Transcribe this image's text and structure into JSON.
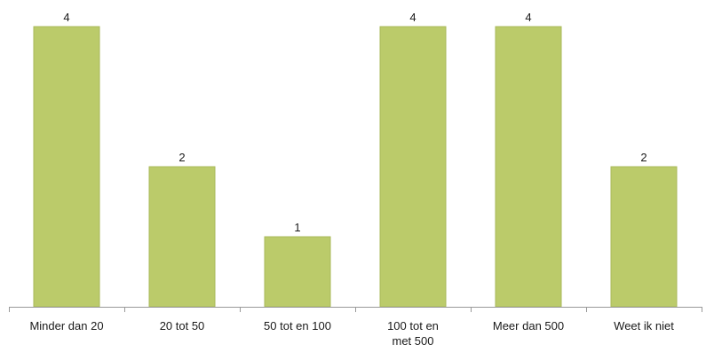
{
  "chart_data": {
    "type": "bar",
    "categories": [
      [
        "Minder dan 20"
      ],
      [
        "20 tot 50"
      ],
      [
        "50 tot en 100"
      ],
      [
        "100 tot en",
        "met 500"
      ],
      [
        "Meer dan 500"
      ],
      [
        "Weet ik niet"
      ]
    ],
    "values": [
      4,
      2,
      1,
      4,
      4,
      2
    ],
    "ylim": [
      0,
      4
    ],
    "grid": false,
    "legend": "none",
    "bar_color": "#BBCB6A",
    "bar_edge_color": "#A9B95A",
    "axis_color": "#999999"
  }
}
